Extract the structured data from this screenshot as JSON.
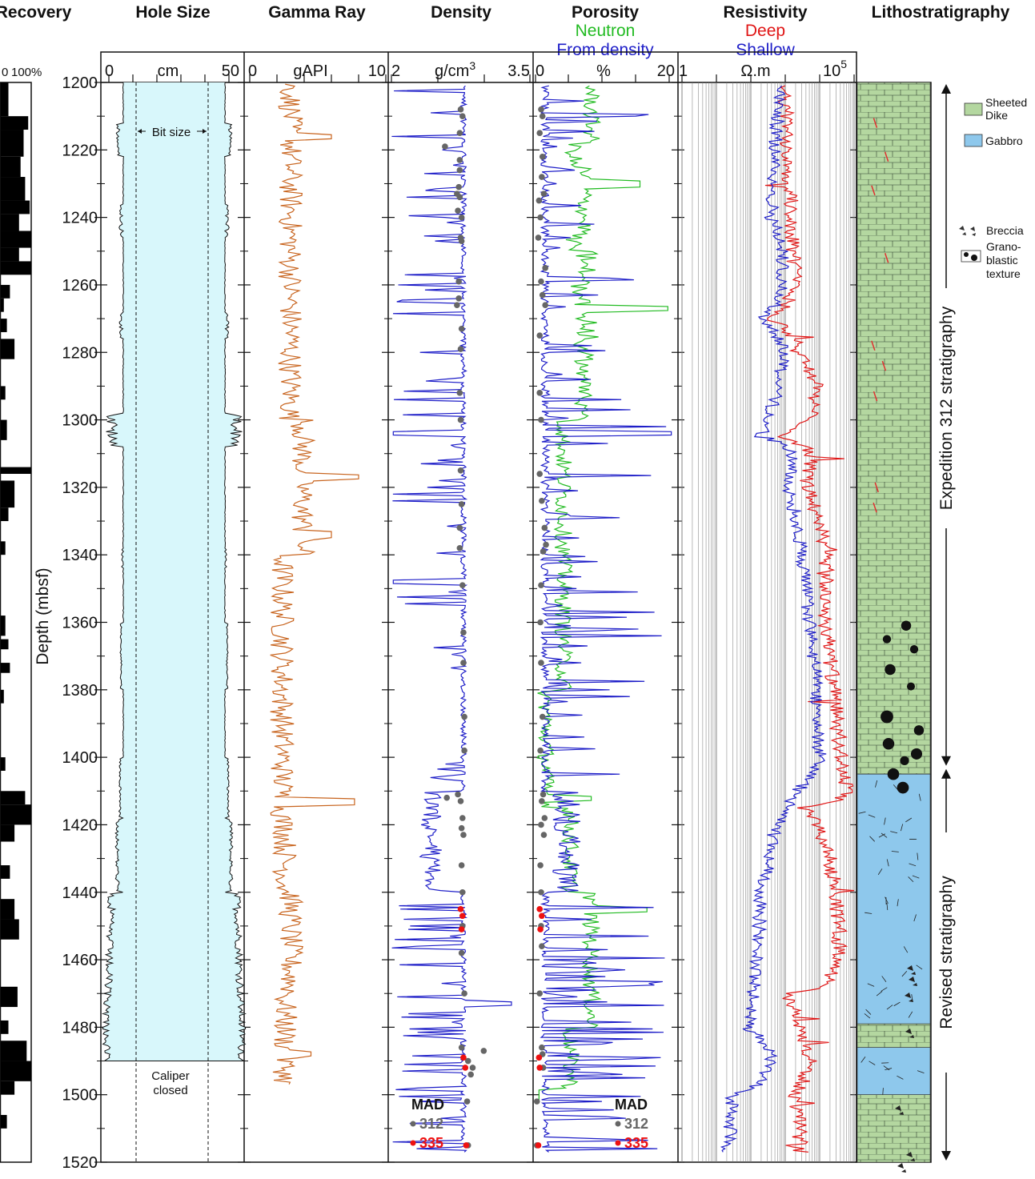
{
  "chart_data": {
    "type": "line",
    "depth_axis": {
      "label": "Depth (mbsf)",
      "range": [
        1200,
        1520
      ],
      "ticks": [
        1200,
        1220,
        1240,
        1260,
        1280,
        1300,
        1320,
        1340,
        1360,
        1380,
        1400,
        1420,
        1440,
        1460,
        1480,
        1500,
        1520
      ]
    },
    "tracks": {
      "recovery": {
        "title": "Recovery",
        "scale_min": "0",
        "scale_max": "100%",
        "cores": [
          {
            "top": 1200,
            "bottom": 1210,
            "pct": 25
          },
          {
            "top": 1210,
            "bottom": 1214,
            "pct": 90
          },
          {
            "top": 1214,
            "bottom": 1222,
            "pct": 75
          },
          {
            "top": 1222,
            "bottom": 1228,
            "pct": 65
          },
          {
            "top": 1228,
            "bottom": 1235,
            "pct": 80
          },
          {
            "top": 1235,
            "bottom": 1239,
            "pct": 95
          },
          {
            "top": 1239,
            "bottom": 1244,
            "pct": 60
          },
          {
            "top": 1244,
            "bottom": 1249,
            "pct": 100
          },
          {
            "top": 1249,
            "bottom": 1253,
            "pct": 60
          },
          {
            "top": 1253,
            "bottom": 1257,
            "pct": 100
          },
          {
            "top": 1260,
            "bottom": 1264,
            "pct": 30
          },
          {
            "top": 1264,
            "bottom": 1268,
            "pct": 10
          },
          {
            "top": 1270,
            "bottom": 1274,
            "pct": 20
          },
          {
            "top": 1276,
            "bottom": 1282,
            "pct": 45
          },
          {
            "top": 1290,
            "bottom": 1294,
            "pct": 15
          },
          {
            "top": 1300,
            "bottom": 1306,
            "pct": 20
          },
          {
            "top": 1314,
            "bottom": 1316,
            "pct": 100
          },
          {
            "top": 1318,
            "bottom": 1326,
            "pct": 45
          },
          {
            "top": 1326,
            "bottom": 1330,
            "pct": 25
          },
          {
            "top": 1336,
            "bottom": 1340,
            "pct": 15
          },
          {
            "top": 1358,
            "bottom": 1364,
            "pct": 15
          },
          {
            "top": 1365,
            "bottom": 1368,
            "pct": 25
          },
          {
            "top": 1372,
            "bottom": 1375,
            "pct": 30
          },
          {
            "top": 1380,
            "bottom": 1384,
            "pct": 10
          },
          {
            "top": 1400,
            "bottom": 1404,
            "pct": 15
          },
          {
            "top": 1410,
            "bottom": 1414,
            "pct": 80
          },
          {
            "top": 1414,
            "bottom": 1420,
            "pct": 100
          },
          {
            "top": 1420,
            "bottom": 1425,
            "pct": 45
          },
          {
            "top": 1432,
            "bottom": 1436,
            "pct": 30
          },
          {
            "top": 1442,
            "bottom": 1448,
            "pct": 45
          },
          {
            "top": 1448,
            "bottom": 1454,
            "pct": 60
          },
          {
            "top": 1468,
            "bottom": 1474,
            "pct": 55
          },
          {
            "top": 1478,
            "bottom": 1482,
            "pct": 25
          },
          {
            "top": 1484,
            "bottom": 1490,
            "pct": 85
          },
          {
            "top": 1490,
            "bottom": 1496,
            "pct": 100
          },
          {
            "top": 1496,
            "bottom": 1500,
            "pct": 45
          },
          {
            "top": 1506,
            "bottom": 1510,
            "pct": 20
          }
        ]
      },
      "hole_size": {
        "title": "Hole Size",
        "unit": "cm",
        "range": [
          0,
          50
        ],
        "bit_size_cm": 25,
        "bit_size_label": "Bit size",
        "closed_label_1": "Caliper",
        "closed_label_2": "closed",
        "caliper_closed_depth": 1490
      },
      "gamma_ray": {
        "title": "Gamma Ray",
        "unit": "gAPI",
        "range": [
          0,
          10
        ],
        "color": "#c8641e"
      },
      "density": {
        "title": "Density",
        "unit": "g/cm",
        "unit_sup": "3",
        "range": [
          2,
          3.5
        ],
        "color": "#1e1ec8",
        "mad_title": "MAD",
        "mad_312": [
          [
            1208,
            2.75
          ],
          [
            1210,
            2.77
          ],
          [
            1215,
            2.74
          ],
          [
            1219,
            2.58
          ],
          [
            1223,
            2.74
          ],
          [
            1226,
            2.74
          ],
          [
            1231,
            2.73
          ],
          [
            1233,
            2.71
          ],
          [
            1234,
            2.74
          ],
          [
            1238,
            2.72
          ],
          [
            1240,
            2.76
          ],
          [
            1246,
            2.75
          ],
          [
            1247,
            2.76
          ],
          [
            1259,
            2.73
          ],
          [
            1264,
            2.73
          ],
          [
            1266,
            2.71
          ],
          [
            1273,
            2.76
          ],
          [
            1279,
            2.75
          ],
          [
            1292,
            2.74
          ],
          [
            1300,
            2.75
          ],
          [
            1315,
            2.75
          ],
          [
            1325,
            2.76
          ],
          [
            1332,
            2.74
          ],
          [
            1338,
            2.74
          ],
          [
            1349,
            2.77
          ],
          [
            1363,
            2.78
          ],
          [
            1372,
            2.78
          ],
          [
            1388,
            2.79
          ],
          [
            1398,
            2.79
          ],
          [
            1411,
            2.72
          ],
          [
            1412,
            2.6
          ],
          [
            1413,
            2.75
          ],
          [
            1418,
            2.77
          ],
          [
            1421,
            2.76
          ],
          [
            1423,
            2.78
          ],
          [
            1432,
            2.76
          ],
          [
            1440,
            2.77
          ],
          [
            1450,
            2.77
          ],
          [
            1458,
            2.76
          ],
          [
            1470,
            2.79
          ],
          [
            1486,
            2.76
          ],
          [
            1487,
            3.0
          ],
          [
            1490,
            2.83
          ],
          [
            1492,
            2.88
          ],
          [
            1494,
            2.86
          ],
          [
            1502,
            2.82
          ],
          [
            1515,
            2.83
          ]
        ],
        "mad_335": [
          [
            1445,
            2.75
          ],
          [
            1447,
            2.77
          ],
          [
            1451,
            2.76
          ],
          [
            1489,
            2.78
          ],
          [
            1492,
            2.8
          ],
          [
            1515,
            2.81
          ]
        ]
      },
      "porosity": {
        "title": "Porosity",
        "unit": "%",
        "range": [
          0,
          20
        ],
        "neutron_label": "Neutron",
        "density_label": "From density",
        "neutron_color": "#22bb22",
        "density_color": "#1e1ec8",
        "mad_312": [
          [
            1208,
            0.8
          ],
          [
            1210,
            1.0
          ],
          [
            1215,
            0.6
          ],
          [
            1222,
            1.0
          ],
          [
            1228,
            0.9
          ],
          [
            1233,
            1.2
          ],
          [
            1235,
            0.5
          ],
          [
            1240,
            0.7
          ],
          [
            1246,
            0.4
          ],
          [
            1255,
            1.4
          ],
          [
            1259,
            0.8
          ],
          [
            1263,
            1.0
          ],
          [
            1266,
            1.4
          ],
          [
            1275,
            0.6
          ],
          [
            1292,
            0.6
          ],
          [
            1300,
            0.8
          ],
          [
            1316,
            0.6
          ],
          [
            1324,
            0.9
          ],
          [
            1332,
            1.3
          ],
          [
            1337,
            1.5
          ],
          [
            1339,
            1.1
          ],
          [
            1349,
            0.8
          ],
          [
            1360,
            0.7
          ],
          [
            1372,
            0.8
          ],
          [
            1388,
            1.0
          ],
          [
            1398,
            0.7
          ],
          [
            1411,
            1.1
          ],
          [
            1413,
            0.9
          ],
          [
            1418,
            1.3
          ],
          [
            1420,
            0.8
          ],
          [
            1423,
            1.2
          ],
          [
            1432,
            0.7
          ],
          [
            1440,
            0.8
          ],
          [
            1450,
            0.8
          ],
          [
            1456,
            0.9
          ],
          [
            1470,
            0.6
          ],
          [
            1486,
            0.9
          ],
          [
            1488,
            1.0
          ],
          [
            1492,
            1.1
          ],
          [
            1502,
            0.2
          ],
          [
            1515,
            0.2
          ]
        ],
        "mad_335": [
          [
            1445,
            0.6
          ],
          [
            1447,
            0.9
          ],
          [
            1451,
            0.7
          ],
          [
            1489,
            0.5
          ],
          [
            1492,
            0.6
          ],
          [
            1515,
            0.4
          ]
        ]
      },
      "resistivity": {
        "title": "Resistivity",
        "unit": "Ω.m",
        "scale": "log",
        "range": [
          1,
          100000
        ],
        "range_min_label": "1",
        "range_max_label": "10",
        "range_max_sup": "5",
        "deep_label": "Deep",
        "shallow_label": "Shallow",
        "deep_color": "#e01515",
        "shallow_color": "#1e1ec8",
        "deep_trend": [
          [
            1200,
            900
          ],
          [
            1220,
            1200
          ],
          [
            1240,
            1500
          ],
          [
            1260,
            2000
          ],
          [
            1270,
            400
          ],
          [
            1280,
            2500
          ],
          [
            1290,
            8000
          ],
          [
            1300,
            5000
          ],
          [
            1305,
            400
          ],
          [
            1310,
            6000
          ],
          [
            1320,
            4000
          ],
          [
            1340,
            15000
          ],
          [
            1360,
            15000
          ],
          [
            1380,
            25000
          ],
          [
            1400,
            40000
          ],
          [
            1410,
            60000
          ],
          [
            1415,
            3000
          ],
          [
            1420,
            8000
          ],
          [
            1440,
            30000
          ],
          [
            1460,
            40000
          ],
          [
            1470,
            1000
          ],
          [
            1480,
            2500
          ],
          [
            1490,
            5000
          ],
          [
            1500,
            2000
          ],
          [
            1520,
            3000
          ]
        ],
        "shallow_trend": [
          [
            1200,
            700
          ],
          [
            1220,
            500
          ],
          [
            1240,
            400
          ],
          [
            1250,
            800
          ],
          [
            1260,
            900
          ],
          [
            1270,
            200
          ],
          [
            1280,
            1000
          ],
          [
            1290,
            600
          ],
          [
            1300,
            300
          ],
          [
            1305,
            200
          ],
          [
            1310,
            1500
          ],
          [
            1320,
            1200
          ],
          [
            1340,
            3000
          ],
          [
            1360,
            5000
          ],
          [
            1380,
            8000
          ],
          [
            1400,
            10000
          ],
          [
            1410,
            2000
          ],
          [
            1420,
            500
          ],
          [
            1440,
            200
          ],
          [
            1460,
            150
          ],
          [
            1480,
            80
          ],
          [
            1490,
            400
          ],
          [
            1500,
            30
          ],
          [
            1510,
            25
          ],
          [
            1520,
            20
          ]
        ]
      },
      "lithostratigraphy": {
        "title": "Lithostratigraphy",
        "units": [
          {
            "top": 1200,
            "bottom": 1405,
            "lith": "Sheeted Dike"
          },
          {
            "top": 1405,
            "bottom": 1479,
            "lith": "Gabbro"
          },
          {
            "top": 1479,
            "bottom": 1486,
            "lith": "Sheeted Dike"
          },
          {
            "top": 1486,
            "bottom": 1500,
            "lith": "Gabbro"
          },
          {
            "top": 1500,
            "bottom": 1520,
            "lith": "Sheeted Dike"
          }
        ],
        "legend": {
          "sheeted_dike_1": "Sheeted",
          "sheeted_dike_2": "Dike",
          "gabbro": "Gabbro",
          "breccia": "Breccia",
          "granoblastic_1": "Grano-",
          "granoblastic_2": "blastic",
          "granoblastic_3": "texture"
        },
        "colors": {
          "sheeted_dike": "#b4d7a0",
          "gabbro": "#8ec8ec"
        },
        "brackets": [
          {
            "label": "Expedition 312 stratigraphy",
            "top": 1200,
            "bottom": 1403
          },
          {
            "label": "Revised stratigraphy",
            "top": 1403,
            "bottom": 1520
          }
        ]
      }
    },
    "mad_legend": {
      "s312": "312",
      "s335": "335",
      "c312": "#666666",
      "c335": "#ee1111"
    }
  }
}
